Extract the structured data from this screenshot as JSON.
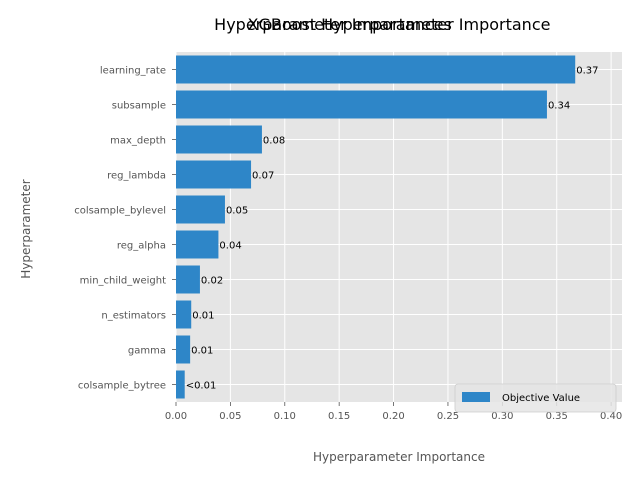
{
  "chart_data": {
    "type": "bar",
    "orientation": "horizontal",
    "titles": [
      "Hyperparameter Importances",
      "XGBoost Hyperparameter Importance"
    ],
    "xlabel": "Hyperparameter Importance",
    "ylabel": "Hyperparameter",
    "xlim": [
      0,
      0.41
    ],
    "xticks": [
      0.0,
      0.05,
      0.1,
      0.15,
      0.2,
      0.25,
      0.3,
      0.35,
      0.4
    ],
    "xtick_labels": [
      "0.00",
      "0.05",
      "0.10",
      "0.15",
      "0.20",
      "0.25",
      "0.30",
      "0.35",
      "0.40"
    ],
    "grid": true,
    "legend_position": "bottom-right",
    "series": [
      {
        "name": "Objective Value",
        "color": "#2e86c8",
        "categories": [
          "learning_rate",
          "subsample",
          "max_depth",
          "reg_lambda",
          "colsample_bylevel",
          "reg_alpha",
          "min_child_weight",
          "n_estimators",
          "gamma",
          "colsample_bytree"
        ],
        "values": [
          0.367,
          0.341,
          0.079,
          0.069,
          0.045,
          0.039,
          0.022,
          0.014,
          0.013,
          0.008
        ],
        "labels": [
          "0.37",
          "0.34",
          "0.08",
          "0.07",
          "0.05",
          "0.04",
          "0.02",
          "0.01",
          "0.01",
          "<0.01"
        ]
      }
    ]
  }
}
